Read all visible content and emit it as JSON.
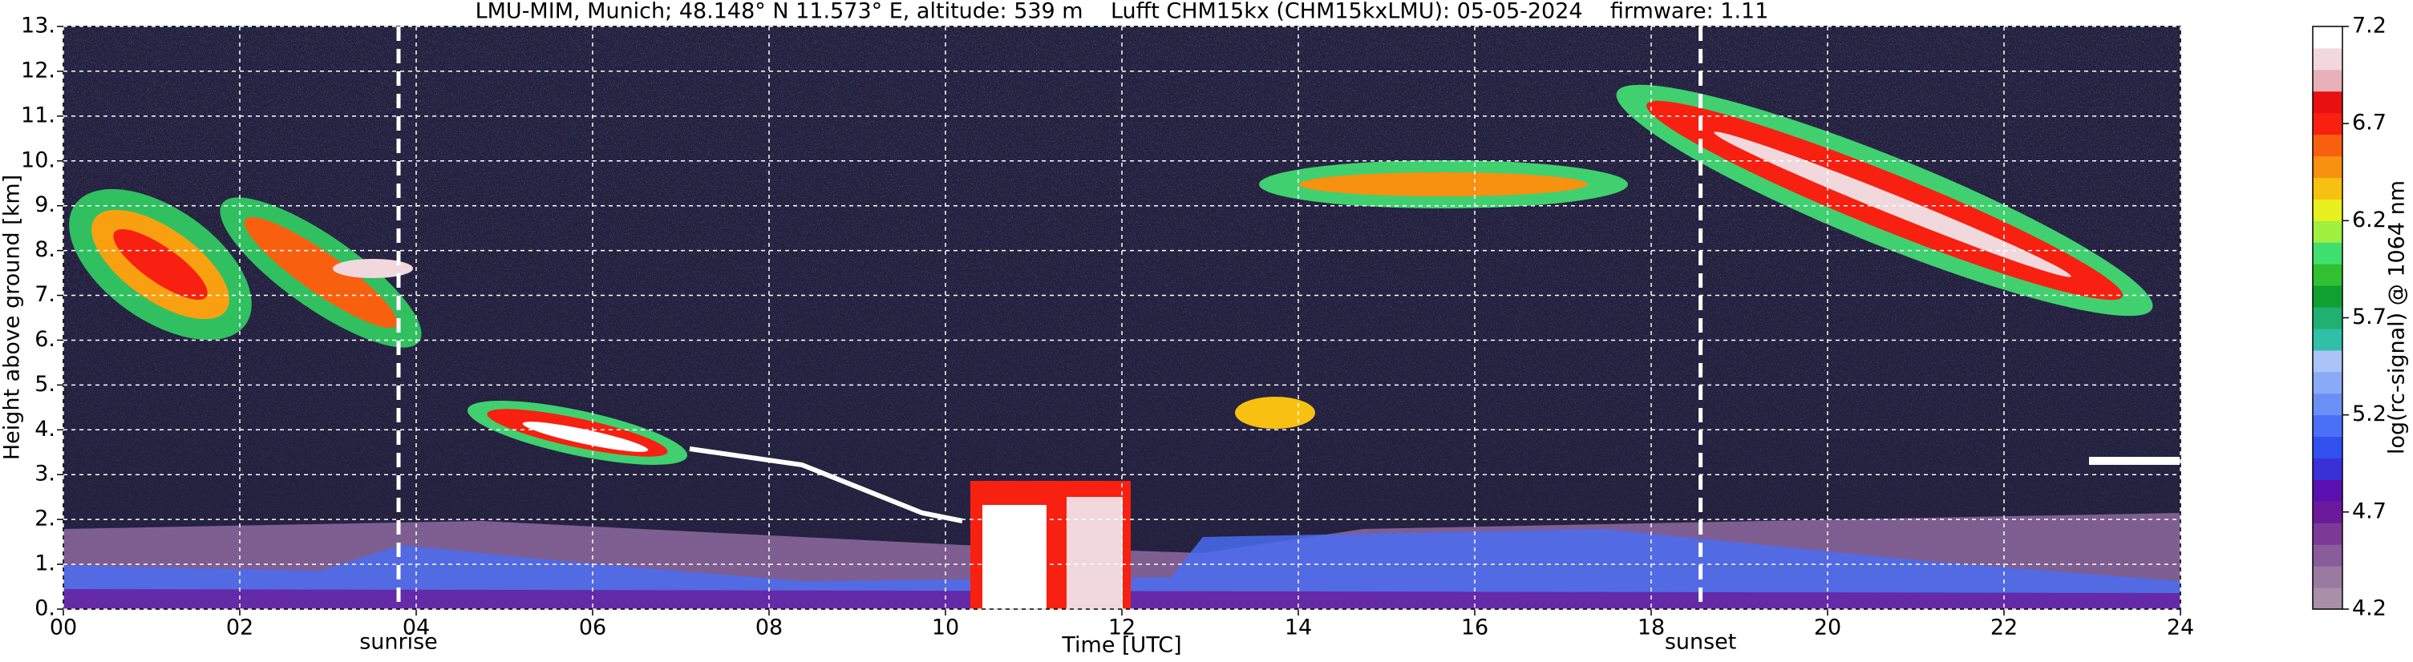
{
  "chart_data": {
    "type": "heatmap",
    "title": "LMU-MIM, Munich; 48.148° N 11.573° E, altitude: 539 m    Lufft CHM15kx (CHM15kxLMU): 05-05-2024    firmware: 1.11",
    "x_label": "Time [UTC]",
    "y_label": "Height above ground [km]",
    "colorbar_label": "log(rc-signal) @ 1064 nm",
    "xlim": [
      0,
      24
    ],
    "xticks": [
      {
        "value": 0,
        "label": "00"
      },
      {
        "value": 2,
        "label": "02"
      },
      {
        "value": 4,
        "label": "04"
      },
      {
        "value": 6,
        "label": "06"
      },
      {
        "value": 8,
        "label": "08"
      },
      {
        "value": 10,
        "label": "10"
      },
      {
        "value": 12,
        "label": "12"
      },
      {
        "value": 14,
        "label": "14"
      },
      {
        "value": 16,
        "label": "16"
      },
      {
        "value": 18,
        "label": "18"
      },
      {
        "value": 20,
        "label": "20"
      },
      {
        "value": 22,
        "label": "22"
      },
      {
        "value": 24,
        "label": "24"
      }
    ],
    "ylim": [
      0,
      13
    ],
    "yticks": [
      {
        "value": 0,
        "label": "0."
      },
      {
        "value": 1,
        "label": "1."
      },
      {
        "value": 2,
        "label": "2."
      },
      {
        "value": 3,
        "label": "3."
      },
      {
        "value": 4,
        "label": "4."
      },
      {
        "value": 5,
        "label": "5."
      },
      {
        "value": 6,
        "label": "6."
      },
      {
        "value": 7,
        "label": "7."
      },
      {
        "value": 8,
        "label": "8."
      },
      {
        "value": 9,
        "label": "9."
      },
      {
        "value": 10,
        "label": "10."
      },
      {
        "value": 11,
        "label": "11."
      },
      {
        "value": 12,
        "label": "12."
      },
      {
        "value": 13,
        "label": "13."
      }
    ],
    "clim": [
      4.2,
      7.2
    ],
    "cticks": [
      4.2,
      4.7,
      5.2,
      5.7,
      6.2,
      6.7,
      7.2
    ],
    "colorscale": [
      "#a890a8",
      "#9a7aa0",
      "#8a5c9a",
      "#7a3a96",
      "#6a1a9a",
      "#5a10b0",
      "#3a30d8",
      "#3050f0",
      "#4a70f8",
      "#6a90f8",
      "#8aaaf8",
      "#aac4f8",
      "#30c0a8",
      "#20b070",
      "#10a030",
      "#30c030",
      "#40e070",
      "#a0f040",
      "#e8f020",
      "#f8c010",
      "#f89010",
      "#f86010",
      "#f82010",
      "#e81010",
      "#e8b0b8",
      "#f0d8dc",
      "#ffffff"
    ],
    "grid": true,
    "annotations": [
      {
        "text": "sunrise",
        "x": 3.8
      },
      {
        "text": "sunset",
        "x": 18.56
      }
    ]
  }
}
